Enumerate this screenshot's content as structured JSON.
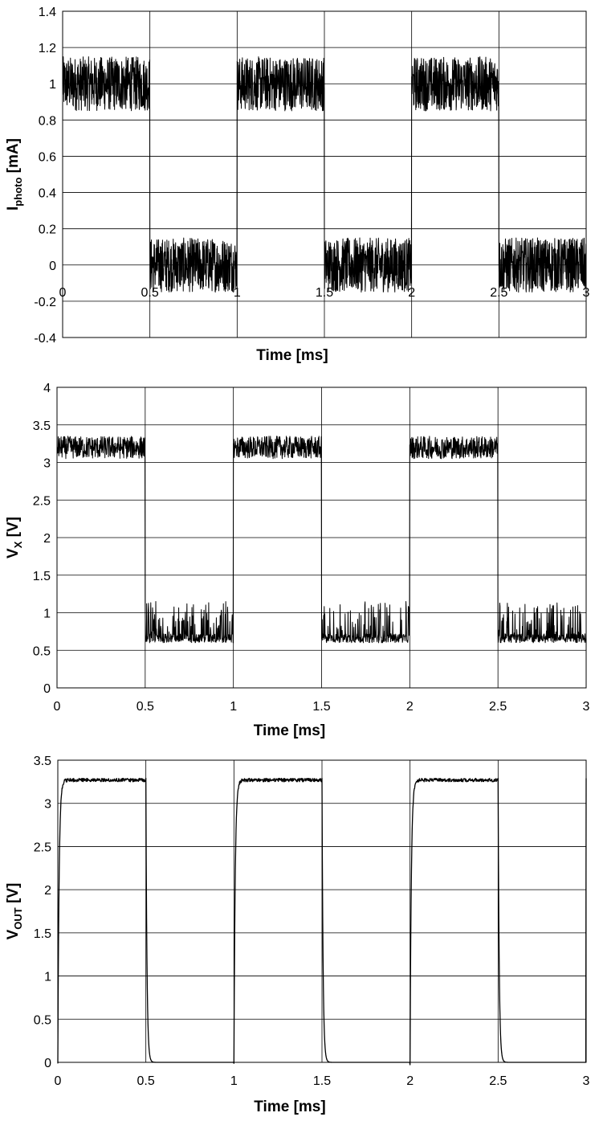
{
  "chart_data": [
    {
      "type": "line",
      "xlabel": "Time [ms]",
      "ylabel": {
        "main": "I",
        "sub": "photo",
        "tail": " [mA]"
      },
      "xlim": [
        0,
        3
      ],
      "ylim": [
        -0.4,
        1.4
      ],
      "xticks": [
        "0",
        "0.5",
        "1",
        "1.5",
        "2",
        "2.5",
        "3"
      ],
      "yticks": [
        "-0.4",
        "-0.2",
        "0",
        "0.2",
        "0.4",
        "0.6",
        "0.8",
        "1",
        "1.2",
        "1.4"
      ],
      "x_tick_labels_at_zero": true,
      "grid": true,
      "series": [
        {
          "line_color": "#000000",
          "x": [
            0,
            0.5,
            0.5,
            1.0,
            1.0,
            1.5,
            1.5,
            2.0,
            2.0,
            2.5,
            2.5,
            3.0
          ],
          "values": [
            1.0,
            1.0,
            0.0,
            0.0,
            1.0,
            1.0,
            0.0,
            0.0,
            1.0,
            1.0,
            0.0,
            0.0
          ],
          "noise_band": 0.15
        }
      ]
    },
    {
      "type": "line",
      "xlabel": "Time [ms]",
      "ylabel": {
        "main": "V",
        "sub": "X",
        "tail": " [V]"
      },
      "xlim": [
        0,
        3
      ],
      "ylim": [
        0,
        4
      ],
      "xticks": [
        "0",
        "0.5",
        "1",
        "1.5",
        "2",
        "2.5",
        "3"
      ],
      "yticks": [
        "0",
        "0.5",
        "1",
        "1.5",
        "2",
        "2.5",
        "3",
        "3.5",
        "4"
      ],
      "grid": true,
      "series": [
        {
          "line_color": "#000000",
          "x": [
            0,
            0.5,
            0.5,
            1.0,
            1.0,
            1.5,
            1.5,
            2.0,
            2.0,
            2.5,
            2.5,
            3.0
          ],
          "values": [
            3.2,
            3.2,
            0.6,
            0.6,
            3.2,
            3.2,
            0.6,
            0.6,
            3.2,
            3.2,
            0.6,
            0.6
          ],
          "high_noise_band": 0.15,
          "low_spike_max": 1.15
        }
      ]
    },
    {
      "type": "line",
      "xlabel": "Time [ms]",
      "ylabel": {
        "main": "V",
        "sub": "OUT",
        "tail": " [V]"
      },
      "xlim": [
        0,
        3
      ],
      "ylim": [
        0,
        3.5
      ],
      "xticks": [
        "0",
        "0.5",
        "1",
        "1.5",
        "2",
        "2.5",
        "3"
      ],
      "yticks": [
        "0",
        "0.5",
        "1",
        "1.5",
        "2",
        "2.5",
        "3",
        "3.5"
      ],
      "grid": true,
      "series": [
        {
          "line_color": "#000000",
          "x": [
            0,
            0.03,
            0.5,
            0.53,
            1.0,
            1.03,
            1.5,
            1.53,
            2.0,
            2.03,
            2.5,
            2.53,
            3.0
          ],
          "values": [
            0.0,
            3.28,
            3.28,
            0.0,
            0.0,
            3.29,
            3.29,
            0.0,
            0.0,
            3.28,
            3.28,
            0.0,
            0.0
          ]
        }
      ]
    }
  ]
}
